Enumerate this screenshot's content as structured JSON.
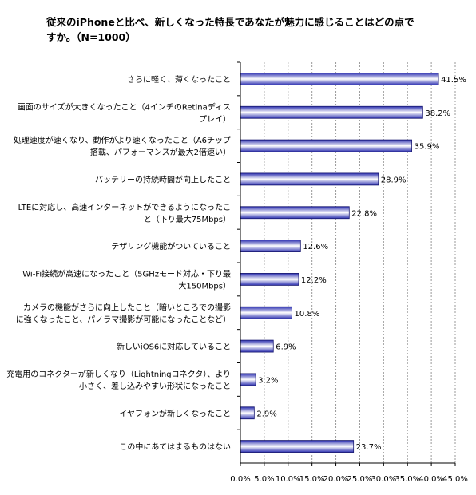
{
  "title_lines": [
    "従来のiPhoneと比べ、新しくなった特長であなたが魅力に感じることはどの点で",
    "すか。（N=1000）"
  ],
  "chart_data": {
    "type": "bar",
    "orientation": "horizontal",
    "categories": [
      [
        "さらに軽く、薄くなったこと"
      ],
      [
        "画面のサイズが大きくなったこと（4インチのRetinaディス",
        "プレイ）"
      ],
      [
        "処理速度が速くなり、動作がより速くなったこと（A6チップ",
        "搭載、パフォーマンスが最大2倍速い）"
      ],
      [
        "バッテリーの持続時間が向上したこと"
      ],
      [
        "LTEに対応し、高速インターネットができるようになったこ",
        "と（下り最大75Mbps）"
      ],
      [
        "テザリング機能がついていること"
      ],
      [
        "Wi-Fi接続が高速になったこと（5GHzモード対応・下り最",
        "大150Mbps）"
      ],
      [
        "カメラの機能がさらに向上したこと（暗いところでの撮影",
        "に強くなったこと、パノラマ撮影が可能になったことなど）"
      ],
      [
        "新しいiOS6に対応していること"
      ],
      [
        "充電用のコネクターが新しくなり（Lightningコネクタ）、より",
        "小さく、差し込みやすい形状になったこと"
      ],
      [
        "イヤフォンが新しくなったこと"
      ],
      [
        "この中にあてはまるものはない"
      ]
    ],
    "values": [
      41.5,
      38.2,
      35.9,
      28.9,
      22.8,
      12.6,
      12.2,
      10.8,
      6.9,
      3.2,
      2.9,
      23.7
    ],
    "value_labels": [
      "41.5%",
      "38.2%",
      "35.9%",
      "28.9%",
      "22.8%",
      "12.6%",
      "12.2%",
      "10.8%",
      "6.9%",
      "3.2%",
      "2.9%",
      "23.7%"
    ],
    "x_ticks": [
      "0.0%",
      "5.0%",
      "10.0%",
      "15.0%",
      "20.0%",
      "25.0%",
      "30.0%",
      "35.0%",
      "40.0%",
      "45.0%"
    ],
    "xlim": [
      0,
      45
    ],
    "grid": "vertical dashed",
    "bar_color_dark": "#2b2fb0",
    "bar_color_light": "#ffffff"
  }
}
